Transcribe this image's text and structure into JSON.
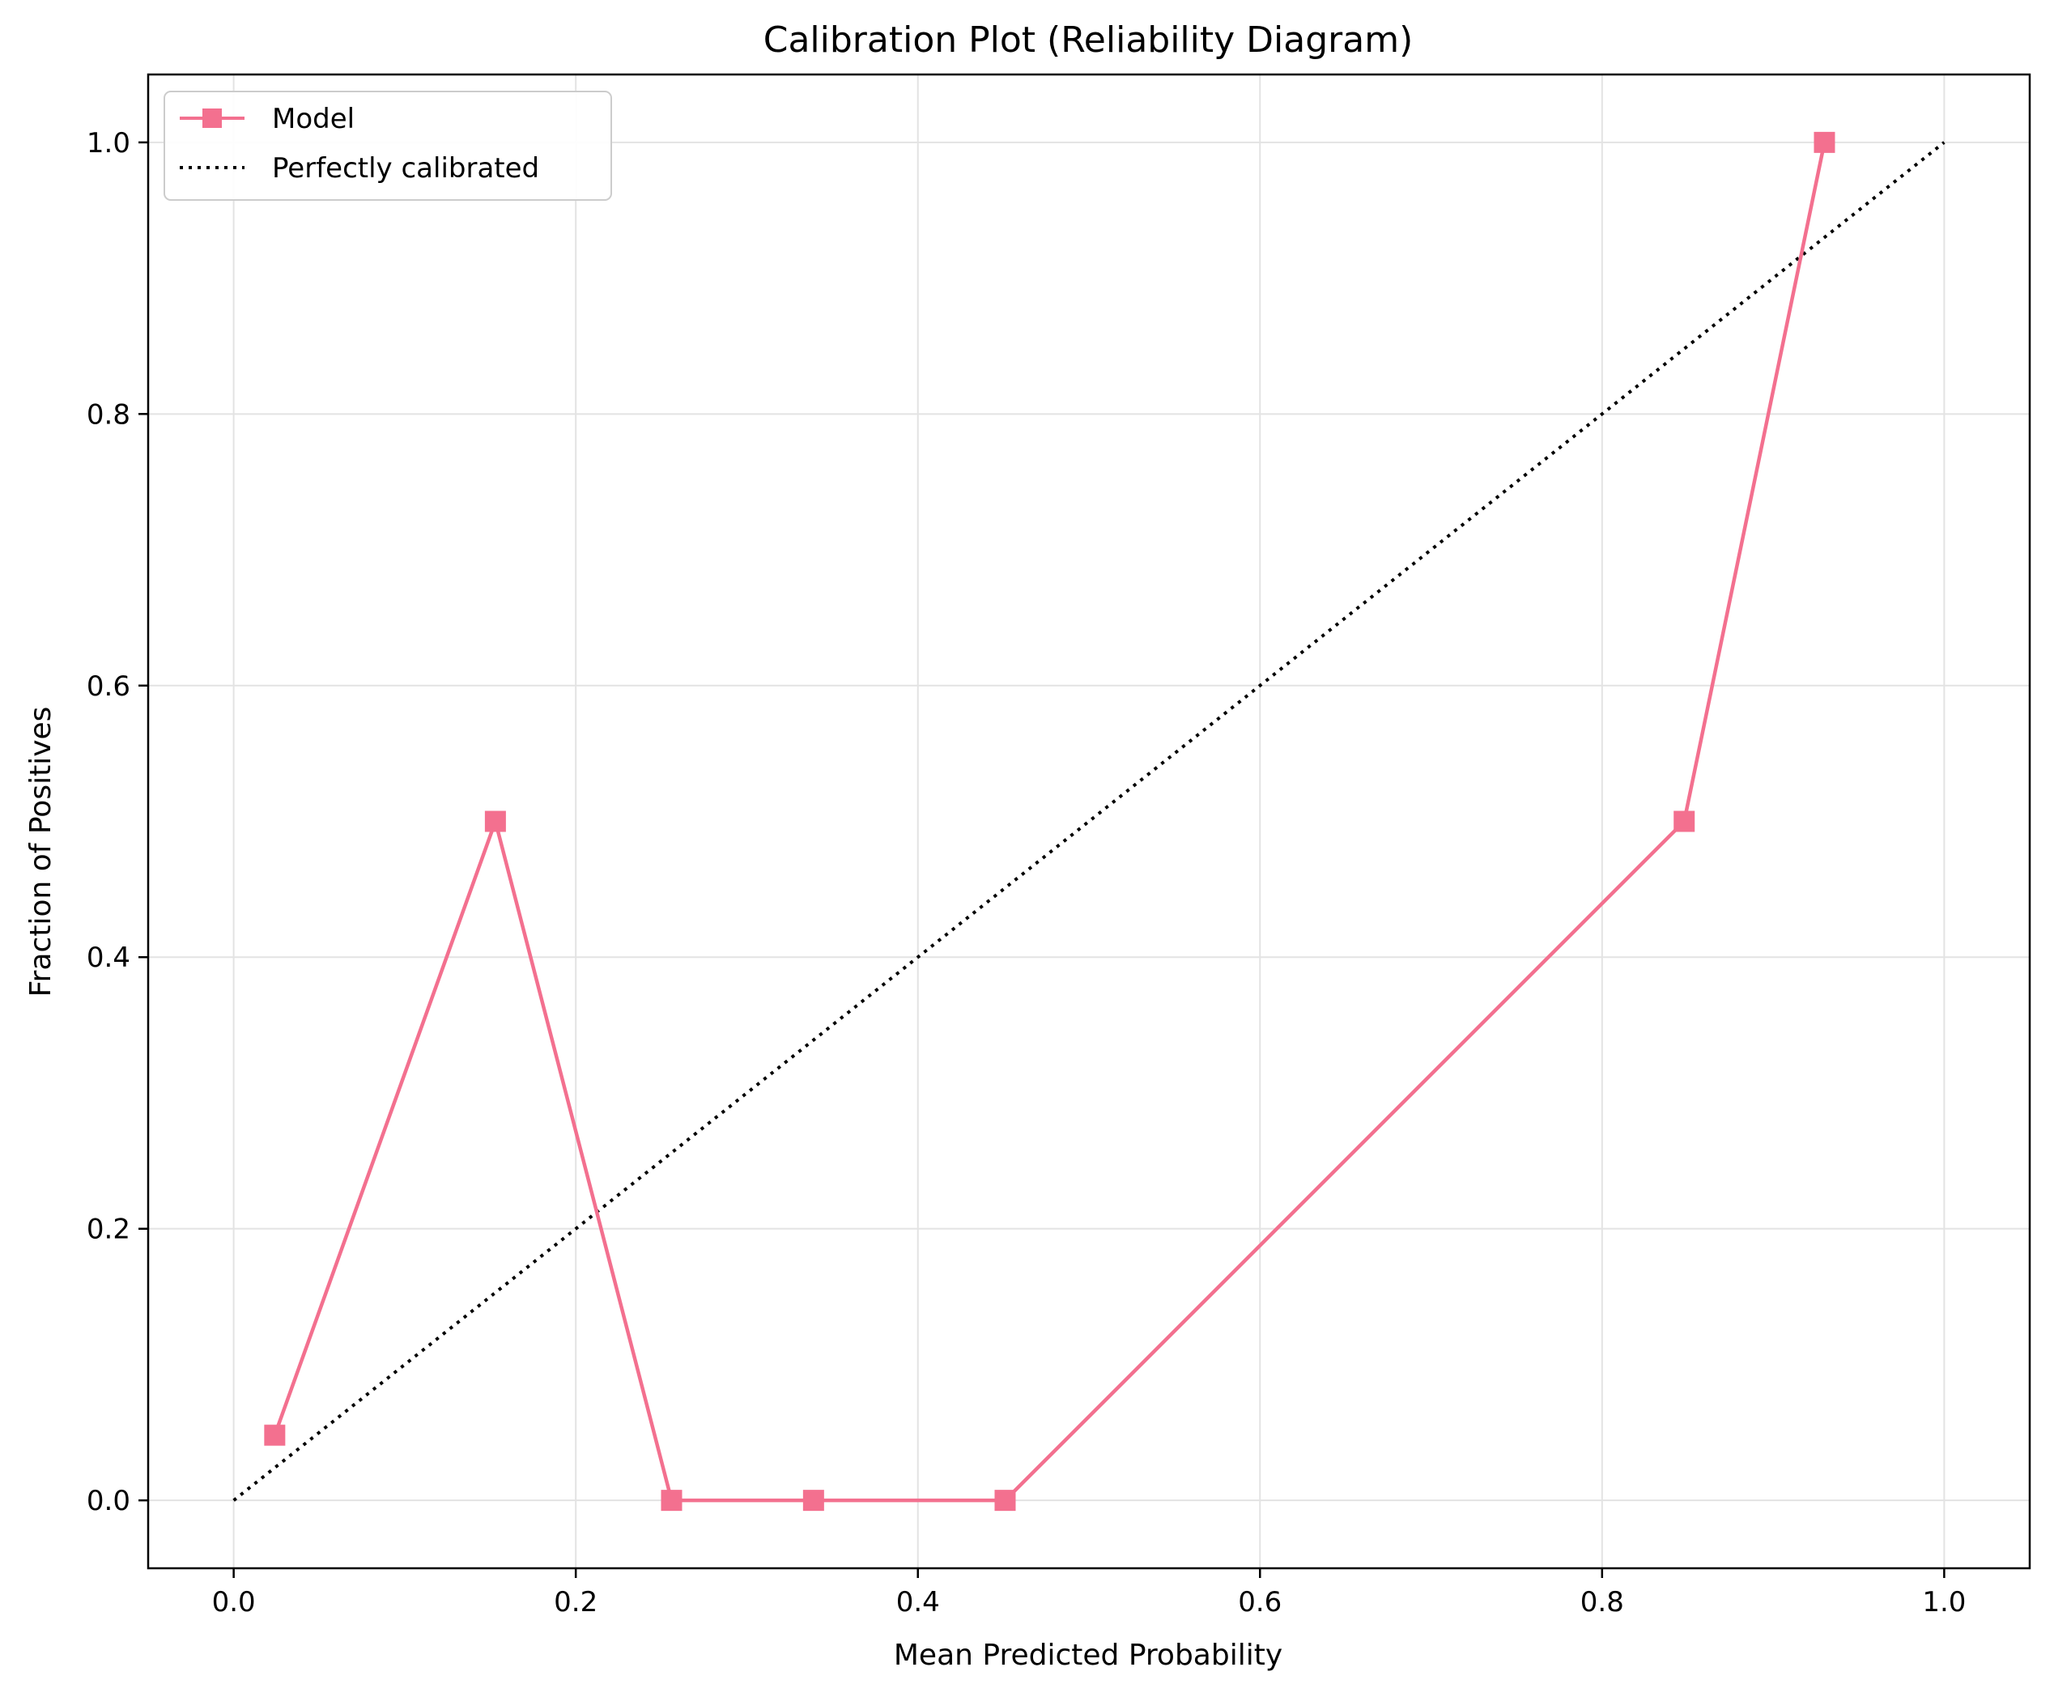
{
  "chart_data": {
    "type": "line",
    "title": "Calibration Plot (Reliability Diagram)",
    "xlabel": "Mean Predicted Probability",
    "ylabel": "Fraction of Positives",
    "xlim": [
      -0.05,
      1.05
    ],
    "ylim": [
      -0.05,
      1.05
    ],
    "grid": true,
    "legend_position": "top-left",
    "x_ticks": [
      0.0,
      0.2,
      0.4,
      0.6,
      0.8,
      1.0
    ],
    "x_tick_labels": [
      "0.0",
      "0.2",
      "0.4",
      "0.6",
      "0.8",
      "1.0"
    ],
    "y_ticks": [
      0.0,
      0.2,
      0.4,
      0.6,
      0.8,
      1.0
    ],
    "y_tick_labels": [
      "0.0",
      "0.2",
      "0.4",
      "0.6",
      "0.8",
      "1.0"
    ],
    "series": [
      {
        "name": "Model",
        "style": "line-with-square-markers",
        "color": "#f3708f",
        "x": [
          0.024,
          0.153,
          0.256,
          0.339,
          0.451,
          0.848,
          0.93
        ],
        "y": [
          0.048,
          0.5,
          0.0,
          0.0,
          0.0,
          0.5,
          1.0
        ]
      },
      {
        "name": "Perfectly calibrated",
        "style": "dotted-line",
        "color": "#000000",
        "x": [
          0.0,
          1.0
        ],
        "y": [
          0.0,
          1.0
        ]
      }
    ]
  }
}
